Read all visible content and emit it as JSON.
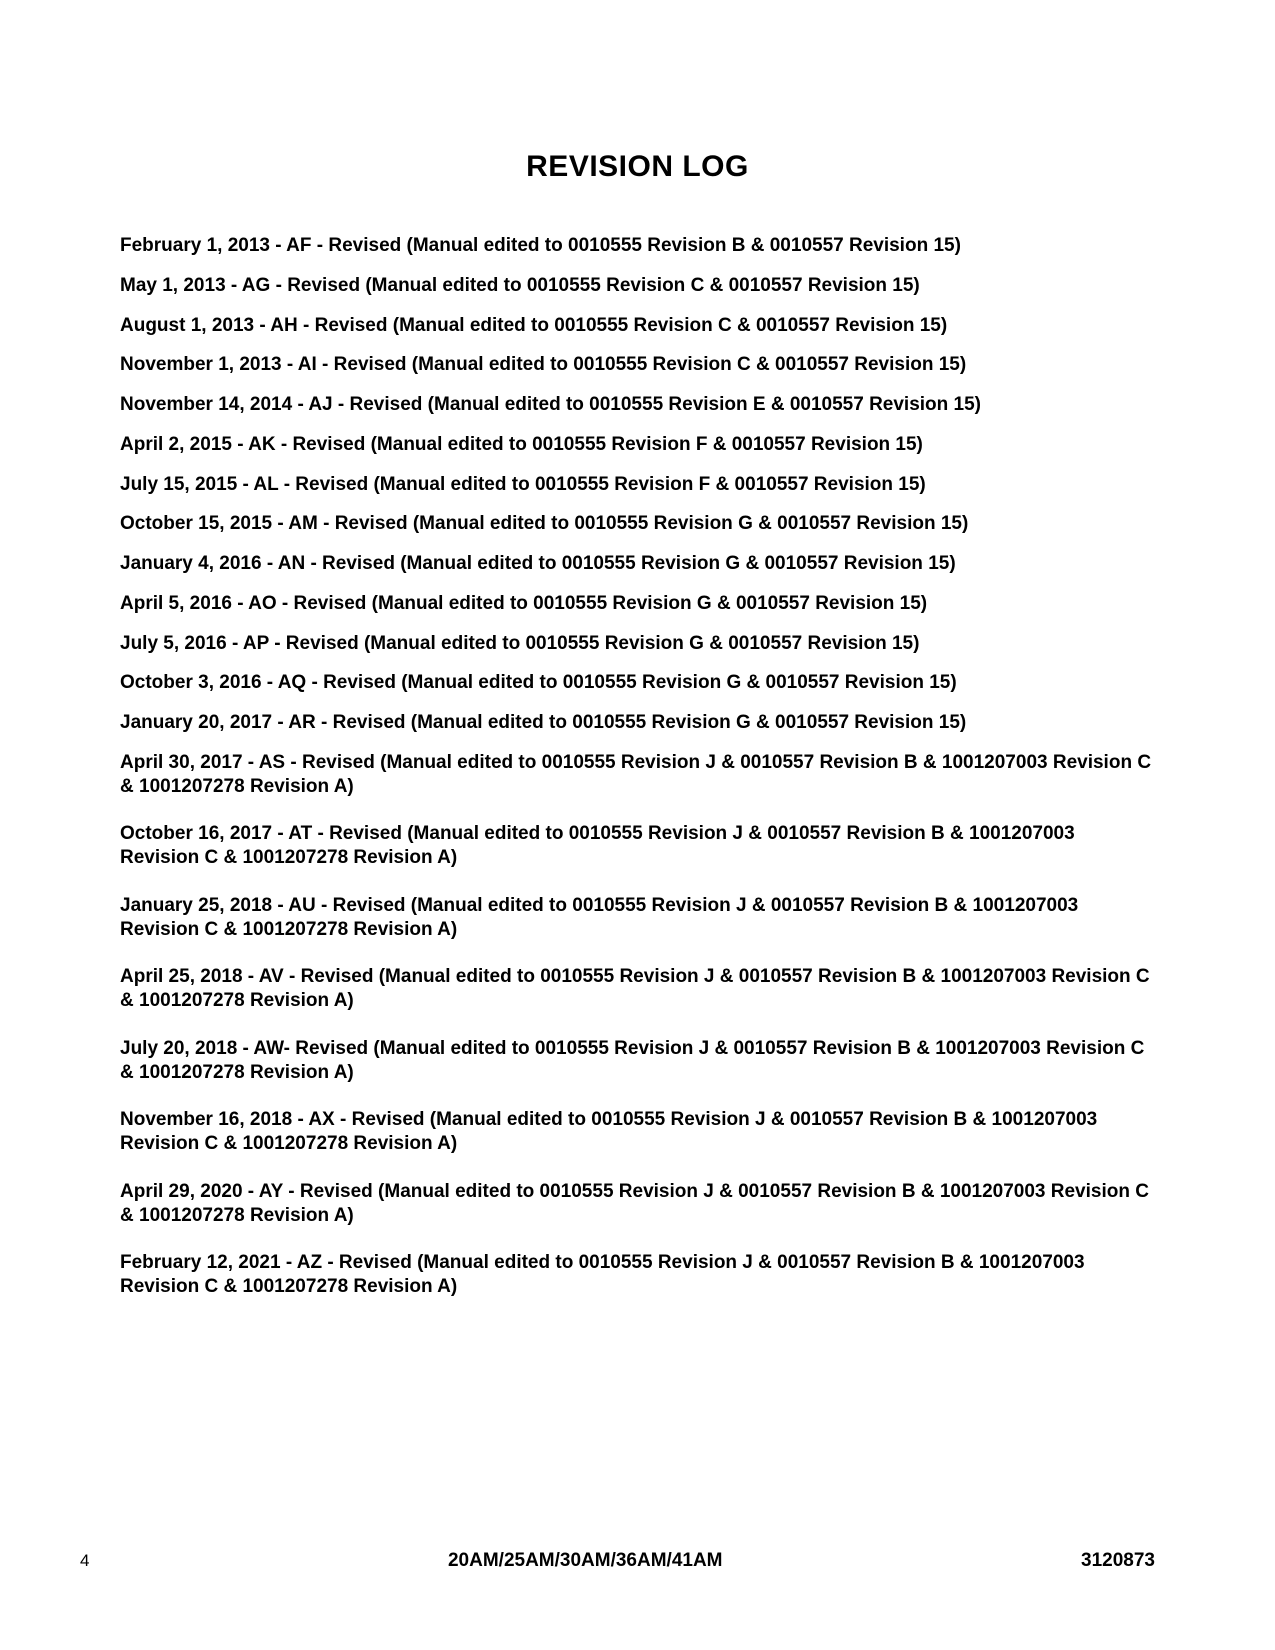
{
  "title": "REVISION LOG",
  "entries": [
    {
      "text": "February 1, 2013 - AF - Revised (Manual edited to 0010555 Revision B & 0010557 Revision 15)",
      "multi": false
    },
    {
      "text": "May 1, 2013 - AG - Revised (Manual edited to 0010555 Revision C & 0010557 Revision 15)",
      "multi": false
    },
    {
      "text": "August 1, 2013 - AH - Revised (Manual edited to 0010555 Revision C & 0010557 Revision 15)",
      "multi": false
    },
    {
      "text": "November 1, 2013 - AI - Revised (Manual edited to 0010555 Revision C & 0010557 Revision 15)",
      "multi": false
    },
    {
      "text": "November 14, 2014 - AJ - Revised (Manual edited to 0010555 Revision E & 0010557 Revision 15)",
      "multi": false
    },
    {
      "text": "April 2, 2015 - AK - Revised (Manual edited to 0010555 Revision F & 0010557 Revision 15)",
      "multi": false
    },
    {
      "text": "July 15, 2015 - AL - Revised (Manual edited to 0010555 Revision F & 0010557 Revision 15)",
      "multi": false
    },
    {
      "text": "October 15, 2015 - AM - Revised (Manual edited to 0010555 Revision G & 0010557 Revision 15)",
      "multi": false
    },
    {
      "text": "January 4, 2016 - AN - Revised (Manual edited to 0010555 Revision G & 0010557 Revision 15)",
      "multi": false
    },
    {
      "text": "April 5, 2016 - AO - Revised (Manual edited to 0010555 Revision G & 0010557 Revision 15)",
      "multi": false
    },
    {
      "text": "July 5, 2016 - AP - Revised (Manual edited to 0010555 Revision G & 0010557 Revision 15)",
      "multi": false
    },
    {
      "text": "October 3, 2016 - AQ - Revised (Manual edited to 0010555 Revision G & 0010557 Revision 15)",
      "multi": false
    },
    {
      "text": "January 20, 2017 - AR - Revised (Manual edited to 0010555 Revision G & 0010557 Revision 15)",
      "multi": false
    },
    {
      "text": "April 30, 2017 - AS - Revised (Manual edited to 0010555 Revision J & 0010557 Revision B & 1001207003 Revision C & 1001207278 Revision A)",
      "multi": true
    },
    {
      "text": "October 16, 2017 - AT - Revised (Manual edited to 0010555 Revision J & 0010557 Revision B & 1001207003 Revision C & 1001207278 Revision A)",
      "multi": true
    },
    {
      "text": "January 25, 2018 - AU - Revised (Manual edited to 0010555 Revision J & 0010557 Revision B & 1001207003 Revision C & 1001207278 Revision A)",
      "multi": true
    },
    {
      "text": "April 25, 2018 - AV - Revised (Manual edited to 0010555 Revision J & 0010557 Revision B & 1001207003 Revision C & 1001207278 Revision A)",
      "multi": true
    },
    {
      "text": "July 20, 2018 - AW- Revised (Manual edited to 0010555 Revision J & 0010557 Revision B & 1001207003 Revision C & 1001207278 Revision A)",
      "multi": true
    },
    {
      "text": "November 16, 2018 - AX - Revised (Manual edited to 0010555 Revision J & 0010557 Revision B & 1001207003 Revision C & 1001207278 Revision A)",
      "multi": true
    },
    {
      "text": "April 29, 2020 - AY - Revised (Manual edited to 0010555 Revision J & 0010557 Revision B & 1001207003 Revision C & 1001207278 Revision A)",
      "multi": true
    },
    {
      "text": "February 12, 2021 - AZ - Revised (Manual edited to 0010555 Revision J & 0010557 Revision B & 1001207003 Revision C & 1001207278 Revision A)",
      "multi": true
    }
  ],
  "footer": {
    "page_number": "4",
    "models": "20AM/25AM/30AM/36AM/41AM",
    "doc_number": "3120873"
  }
}
